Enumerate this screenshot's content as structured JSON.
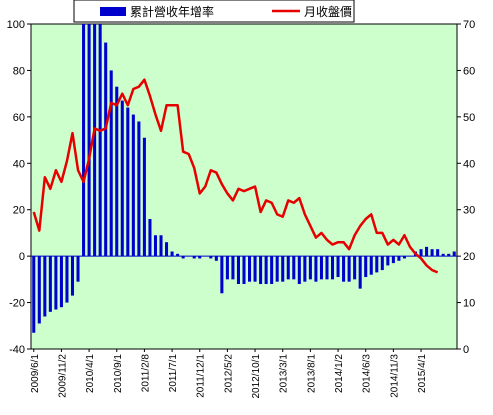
{
  "chart_data": {
    "type": "bar+line",
    "legend": {
      "bar_label": "累計營收年增率",
      "line_label": "月收盤價",
      "placement": "top"
    },
    "colors": {
      "plot_background": "#ccffcc",
      "bar": "#0000cc",
      "line": "#e60000",
      "zero_line": "#0000cc"
    },
    "y_left": {
      "min": -40,
      "max": 100,
      "ticks": [
        -40,
        -20,
        0,
        20,
        40,
        60,
        80,
        100
      ]
    },
    "y_right": {
      "min": 0,
      "max": 70,
      "ticks": [
        0,
        10,
        20,
        30,
        40,
        50,
        60,
        70
      ]
    },
    "x_tick_labels": [
      "2009/6/1",
      "2009/11/2",
      "2010/4/1",
      "2010/9/1",
      "2011/2/8",
      "2011/7/1",
      "2011/12/1",
      "2012/5/2",
      "2012/10/1",
      "2013/3/1",
      "2013/8/1",
      "2014/1/2",
      "2014/6/3",
      "2014/11/3",
      "2015/4/1"
    ],
    "x_tick_index": [
      0,
      5,
      10,
      15,
      20,
      25,
      30,
      35,
      40,
      45,
      50,
      55,
      60,
      65,
      70
    ],
    "bar_values": [
      -33,
      -29,
      -26,
      -24,
      -23,
      -22,
      -20,
      -17,
      -11,
      100,
      100,
      100,
      100,
      92,
      80,
      73,
      67,
      64,
      61,
      58,
      51,
      16,
      9,
      9,
      6,
      2,
      1,
      -1,
      0,
      -1,
      -1,
      0,
      -1,
      -2,
      -16,
      -10,
      -10,
      -12,
      -12,
      -11,
      -11,
      -12,
      -12,
      -12,
      -11,
      -11,
      -10,
      -10,
      -12,
      -11,
      -10,
      -11,
      -10,
      -10,
      -10,
      -9,
      -11,
      -11,
      -10,
      -14,
      -9,
      -8,
      -7,
      -6,
      -4,
      -3,
      -2,
      -1,
      0,
      2,
      3,
      4,
      3,
      3,
      1,
      1,
      2
    ],
    "line_values": [
      29.5,
      25.5,
      37,
      34.5,
      38.5,
      36,
      40.5,
      46.5,
      38.5,
      36,
      41,
      47.5,
      47,
      47.5,
      53,
      52.5,
      55,
      52.5,
      56,
      56.5,
      58,
      54.5,
      50.5,
      47,
      52.5,
      52.5,
      52.5,
      42.5,
      42,
      39,
      33.5,
      35,
      38.5,
      38,
      35.5,
      33.5,
      32,
      34.5,
      34,
      34.5,
      35,
      29.5,
      32,
      31.5,
      29,
      28.5,
      32,
      31.5,
      32.5,
      29,
      26.5,
      24,
      25,
      23.5,
      22.5,
      23,
      23,
      21.5,
      24.5,
      26.5,
      28,
      29,
      25,
      25,
      22.5,
      23.5,
      22.5,
      24.5,
      22,
      20.5,
      19.5,
      18,
      17,
      16.5
    ]
  }
}
